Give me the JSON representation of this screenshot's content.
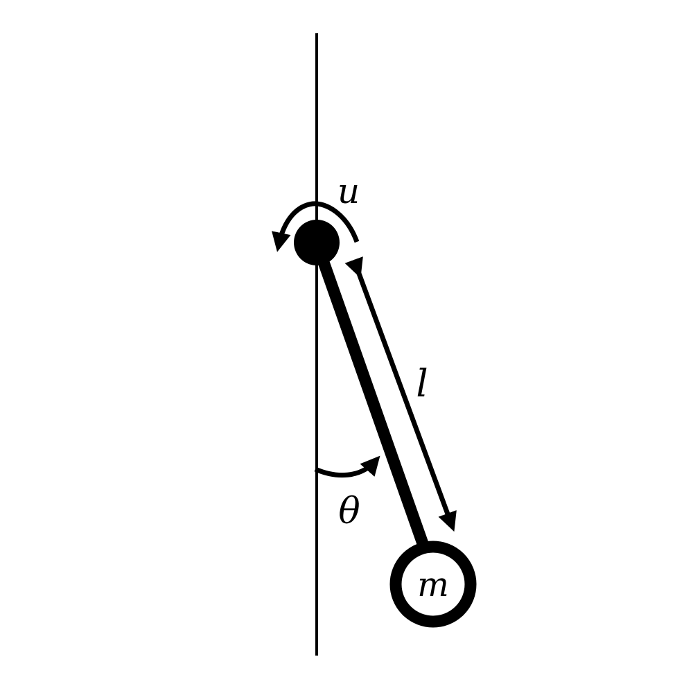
{
  "diagram": {
    "labels": {
      "torque": "u",
      "length": "l",
      "angle": "θ",
      "mass": "m"
    },
    "colors": {
      "stroke": "#000000",
      "background": "#ffffff"
    }
  }
}
